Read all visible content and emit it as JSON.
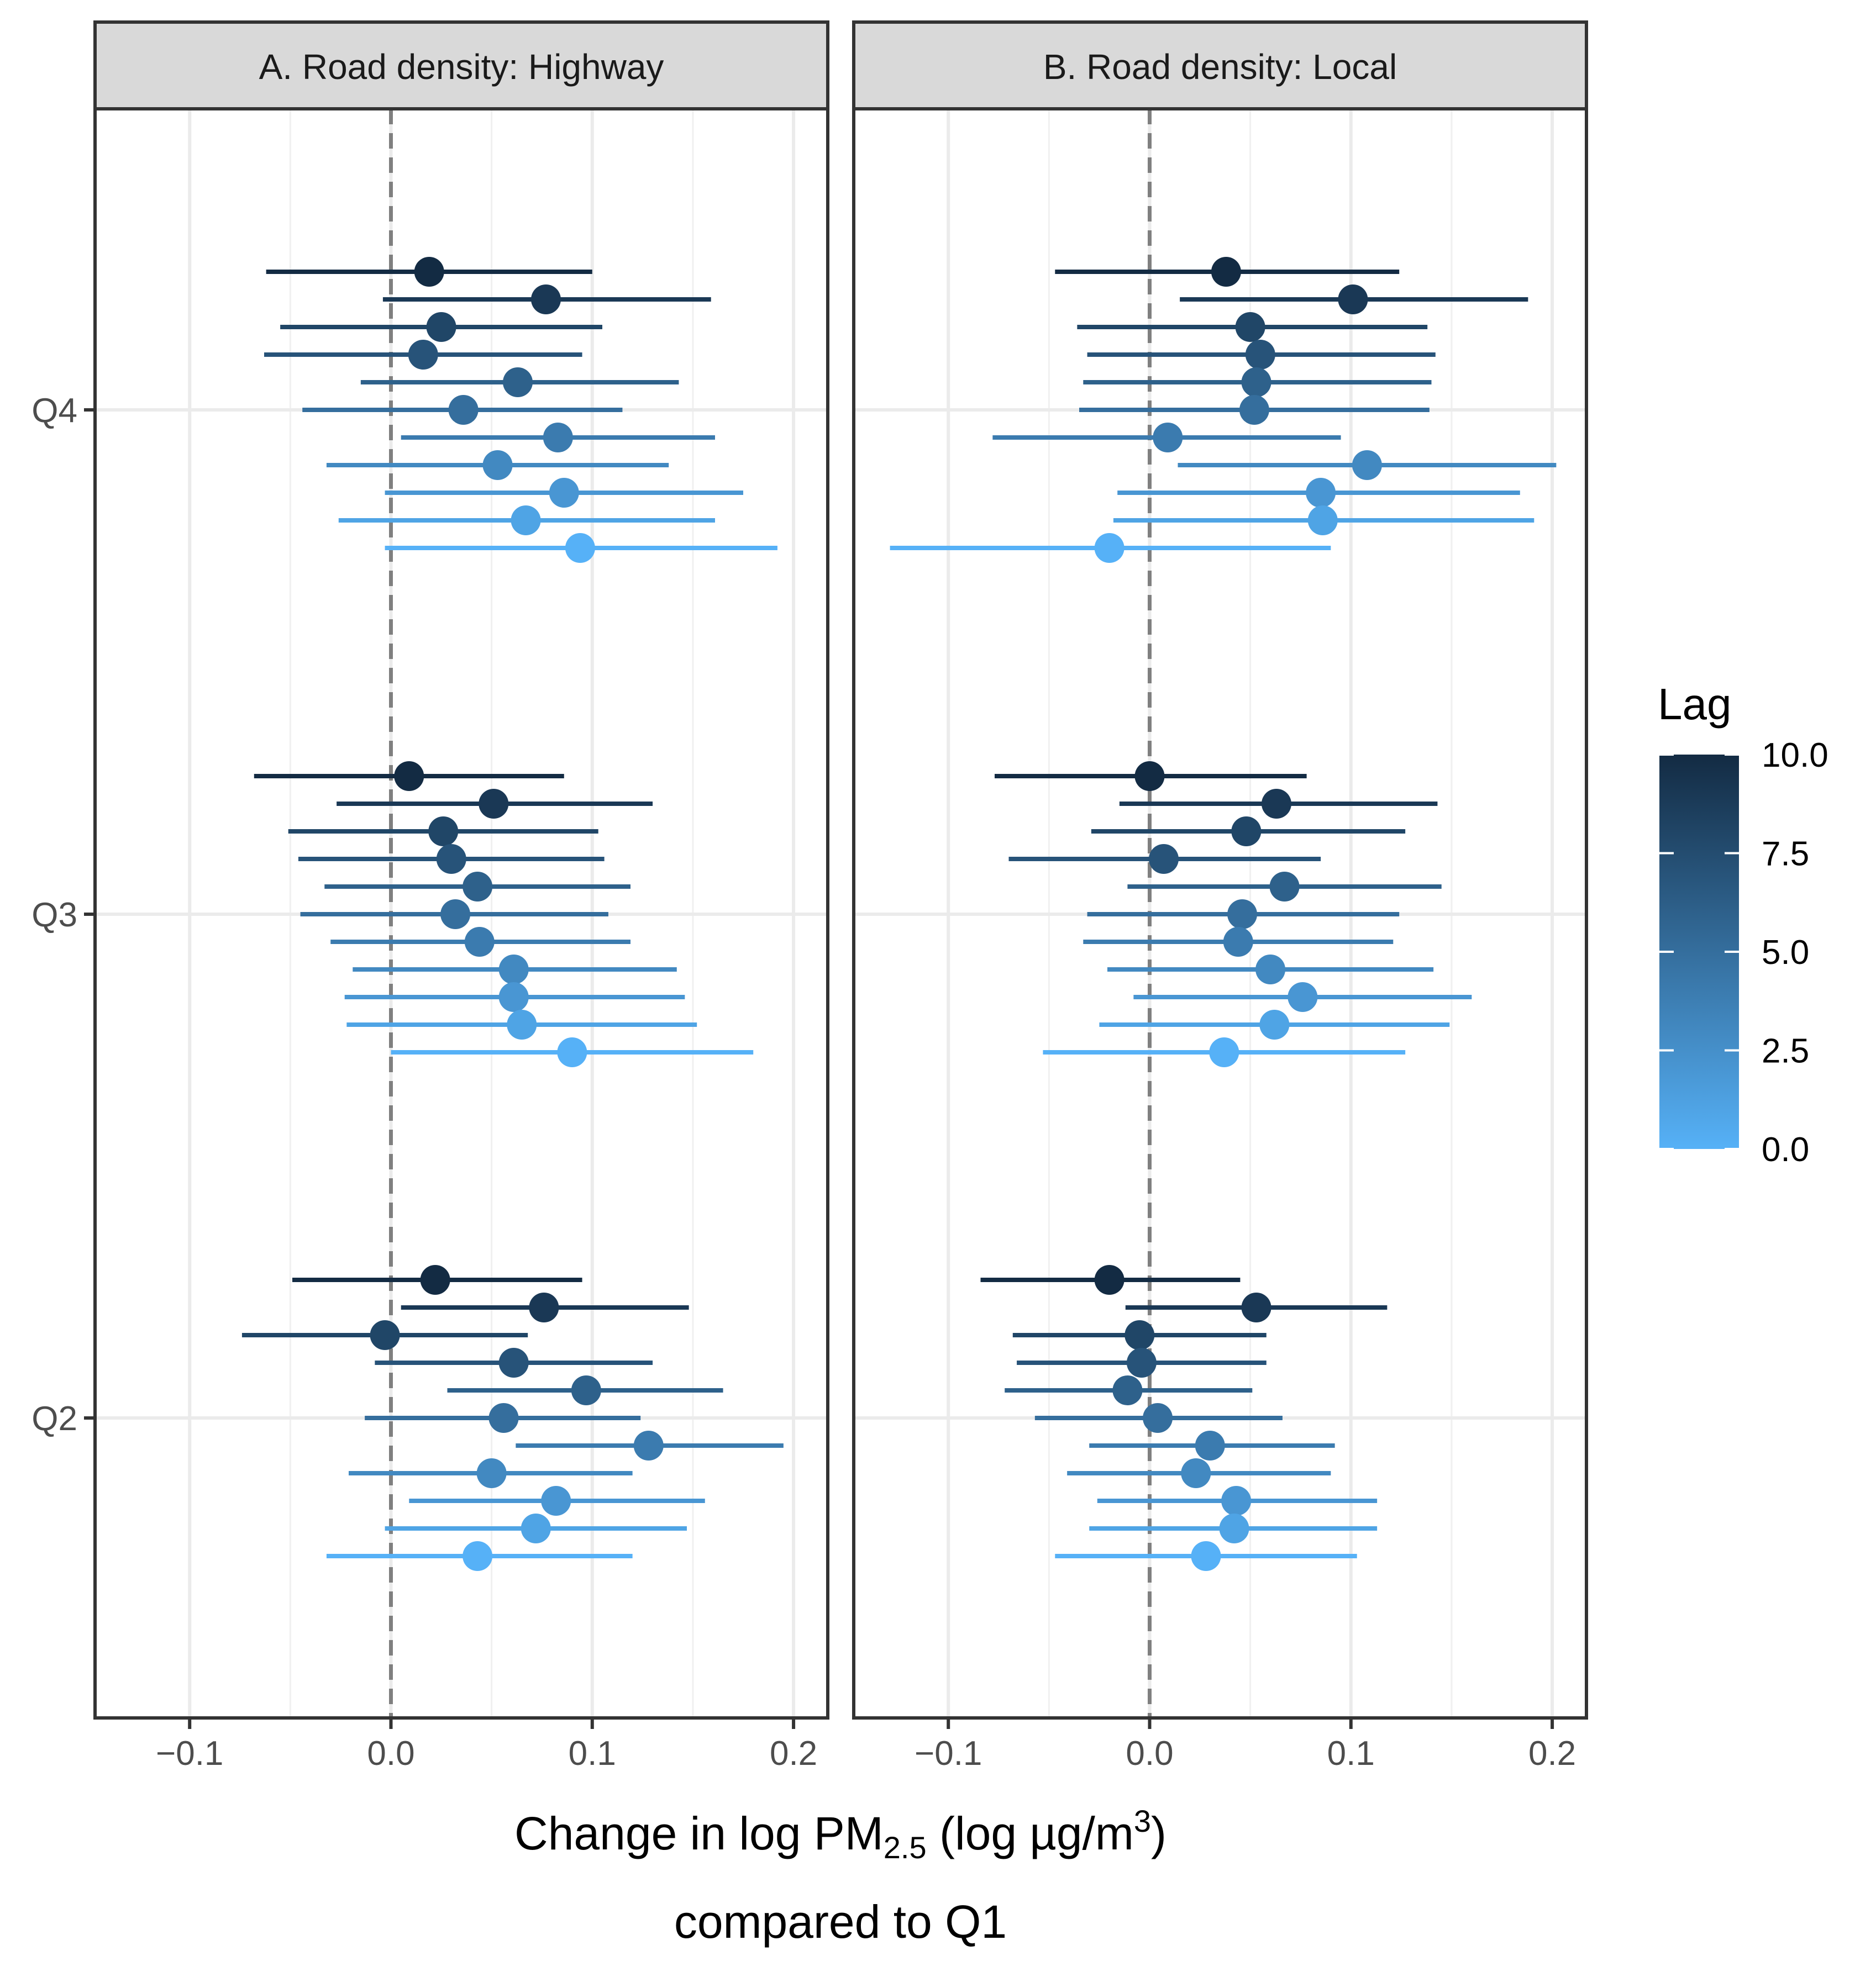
{
  "chart_data": {
    "type": "forest",
    "xlim": [
      -0.147,
      0.217
    ],
    "x_ticks": [
      -0.1,
      0.0,
      0.1,
      0.2
    ],
    "x_tick_labels": [
      "−0.1",
      "0.0",
      "0.1",
      "0.2"
    ],
    "y_categories": [
      "Q4",
      "Q3",
      "Q2"
    ],
    "reference_line": 0,
    "lags": [
      10,
      9,
      8,
      7,
      6,
      5,
      4,
      3,
      2,
      1,
      0
    ],
    "xlabel_line1_prefix": "Change in log PM",
    "xlabel_line1_sub": "2.5",
    "xlabel_line1_mid": " (log µg/m",
    "xlabel_line1_sup": "3",
    "xlabel_line1_end": ")",
    "xlabel_line2": "compared to Q1",
    "legend": {
      "title": "Lag",
      "range": [
        0,
        10
      ],
      "labels": [
        "10.0",
        "7.5",
        "5.0",
        "2.5",
        "0.0"
      ],
      "color_low": "#56B1F7",
      "color_high": "#132B43"
    },
    "panels": [
      {
        "title": "A. Road density: Highway",
        "groups": {
          "Q4": [
            {
              "lag": 10,
              "est": 0.019,
              "lo": -0.062,
              "hi": 0.1
            },
            {
              "lag": 9,
              "est": 0.077,
              "lo": -0.004,
              "hi": 0.159
            },
            {
              "lag": 8,
              "est": 0.025,
              "lo": -0.055,
              "hi": 0.105
            },
            {
              "lag": 7,
              "est": 0.016,
              "lo": -0.063,
              "hi": 0.095
            },
            {
              "lag": 6,
              "est": 0.063,
              "lo": -0.015,
              "hi": 0.143
            },
            {
              "lag": 5,
              "est": 0.036,
              "lo": -0.044,
              "hi": 0.115
            },
            {
              "lag": 4,
              "est": 0.083,
              "lo": 0.005,
              "hi": 0.161
            },
            {
              "lag": 3,
              "est": 0.053,
              "lo": -0.032,
              "hi": 0.138
            },
            {
              "lag": 2,
              "est": 0.086,
              "lo": -0.003,
              "hi": 0.175
            },
            {
              "lag": 1,
              "est": 0.067,
              "lo": -0.026,
              "hi": 0.161
            },
            {
              "lag": 0,
              "est": 0.094,
              "lo": -0.003,
              "hi": 0.192
            }
          ],
          "Q3": [
            {
              "lag": 10,
              "est": 0.009,
              "lo": -0.068,
              "hi": 0.086
            },
            {
              "lag": 9,
              "est": 0.051,
              "lo": -0.027,
              "hi": 0.13
            },
            {
              "lag": 8,
              "est": 0.026,
              "lo": -0.051,
              "hi": 0.103
            },
            {
              "lag": 7,
              "est": 0.03,
              "lo": -0.046,
              "hi": 0.106
            },
            {
              "lag": 6,
              "est": 0.043,
              "lo": -0.033,
              "hi": 0.119
            },
            {
              "lag": 5,
              "est": 0.032,
              "lo": -0.045,
              "hi": 0.108
            },
            {
              "lag": 4,
              "est": 0.044,
              "lo": -0.03,
              "hi": 0.119
            },
            {
              "lag": 3,
              "est": 0.061,
              "lo": -0.019,
              "hi": 0.142
            },
            {
              "lag": 2,
              "est": 0.061,
              "lo": -0.023,
              "hi": 0.146
            },
            {
              "lag": 1,
              "est": 0.065,
              "lo": -0.022,
              "hi": 0.152
            },
            {
              "lag": 0,
              "est": 0.09,
              "lo": 0.0,
              "hi": 0.18
            }
          ],
          "Q2": [
            {
              "lag": 10,
              "est": 0.022,
              "lo": -0.049,
              "hi": 0.095
            },
            {
              "lag": 9,
              "est": 0.076,
              "lo": 0.005,
              "hi": 0.148
            },
            {
              "lag": 8,
              "est": -0.003,
              "lo": -0.074,
              "hi": 0.068
            },
            {
              "lag": 7,
              "est": 0.061,
              "lo": -0.008,
              "hi": 0.13
            },
            {
              "lag": 6,
              "est": 0.097,
              "lo": 0.028,
              "hi": 0.165
            },
            {
              "lag": 5,
              "est": 0.056,
              "lo": -0.013,
              "hi": 0.124
            },
            {
              "lag": 4,
              "est": 0.128,
              "lo": 0.062,
              "hi": 0.195
            },
            {
              "lag": 3,
              "est": 0.05,
              "lo": -0.021,
              "hi": 0.12
            },
            {
              "lag": 2,
              "est": 0.082,
              "lo": 0.009,
              "hi": 0.156
            },
            {
              "lag": 1,
              "est": 0.072,
              "lo": -0.003,
              "hi": 0.147
            },
            {
              "lag": 0,
              "est": 0.043,
              "lo": -0.032,
              "hi": 0.12
            }
          ]
        }
      },
      {
        "title": "B. Road density: Local",
        "groups": {
          "Q4": [
            {
              "lag": 10,
              "est": 0.038,
              "lo": -0.047,
              "hi": 0.124
            },
            {
              "lag": 9,
              "est": 0.101,
              "lo": 0.015,
              "hi": 0.188
            },
            {
              "lag": 8,
              "est": 0.05,
              "lo": -0.036,
              "hi": 0.138
            },
            {
              "lag": 7,
              "est": 0.055,
              "lo": -0.031,
              "hi": 0.142
            },
            {
              "lag": 6,
              "est": 0.053,
              "lo": -0.033,
              "hi": 0.14
            },
            {
              "lag": 5,
              "est": 0.052,
              "lo": -0.035,
              "hi": 0.139
            },
            {
              "lag": 4,
              "est": 0.009,
              "lo": -0.078,
              "hi": 0.095
            },
            {
              "lag": 3,
              "est": 0.108,
              "lo": 0.014,
              "hi": 0.202
            },
            {
              "lag": 2,
              "est": 0.085,
              "lo": -0.016,
              "hi": 0.184
            },
            {
              "lag": 1,
              "est": 0.086,
              "lo": -0.018,
              "hi": 0.191
            },
            {
              "lag": 0,
              "est": -0.02,
              "lo": -0.129,
              "hi": 0.09
            }
          ],
          "Q3": [
            {
              "lag": 10,
              "est": 0.0,
              "lo": -0.077,
              "hi": 0.078
            },
            {
              "lag": 9,
              "est": 0.063,
              "lo": -0.015,
              "hi": 0.143
            },
            {
              "lag": 8,
              "est": 0.048,
              "lo": -0.029,
              "hi": 0.127
            },
            {
              "lag": 7,
              "est": 0.007,
              "lo": -0.07,
              "hi": 0.085
            },
            {
              "lag": 6,
              "est": 0.067,
              "lo": -0.011,
              "hi": 0.145
            },
            {
              "lag": 5,
              "est": 0.046,
              "lo": -0.031,
              "hi": 0.124
            },
            {
              "lag": 4,
              "est": 0.044,
              "lo": -0.033,
              "hi": 0.121
            },
            {
              "lag": 3,
              "est": 0.06,
              "lo": -0.021,
              "hi": 0.141
            },
            {
              "lag": 2,
              "est": 0.076,
              "lo": -0.008,
              "hi": 0.16
            },
            {
              "lag": 1,
              "est": 0.062,
              "lo": -0.025,
              "hi": 0.149
            },
            {
              "lag": 0,
              "est": 0.037,
              "lo": -0.053,
              "hi": 0.127
            }
          ],
          "Q2": [
            {
              "lag": 10,
              "est": -0.02,
              "lo": -0.084,
              "hi": 0.045
            },
            {
              "lag": 9,
              "est": 0.053,
              "lo": -0.012,
              "hi": 0.118
            },
            {
              "lag": 8,
              "est": -0.005,
              "lo": -0.068,
              "hi": 0.058
            },
            {
              "lag": 7,
              "est": -0.004,
              "lo": -0.066,
              "hi": 0.058
            },
            {
              "lag": 6,
              "est": -0.011,
              "lo": -0.072,
              "hi": 0.051
            },
            {
              "lag": 5,
              "est": 0.004,
              "lo": -0.057,
              "hi": 0.066
            },
            {
              "lag": 4,
              "est": 0.03,
              "lo": -0.03,
              "hi": 0.092
            },
            {
              "lag": 3,
              "est": 0.023,
              "lo": -0.041,
              "hi": 0.09
            },
            {
              "lag": 2,
              "est": 0.043,
              "lo": -0.026,
              "hi": 0.113
            },
            {
              "lag": 1,
              "est": 0.042,
              "lo": -0.03,
              "hi": 0.113
            },
            {
              "lag": 0,
              "est": 0.028,
              "lo": -0.047,
              "hi": 0.103
            }
          ]
        }
      }
    ]
  }
}
